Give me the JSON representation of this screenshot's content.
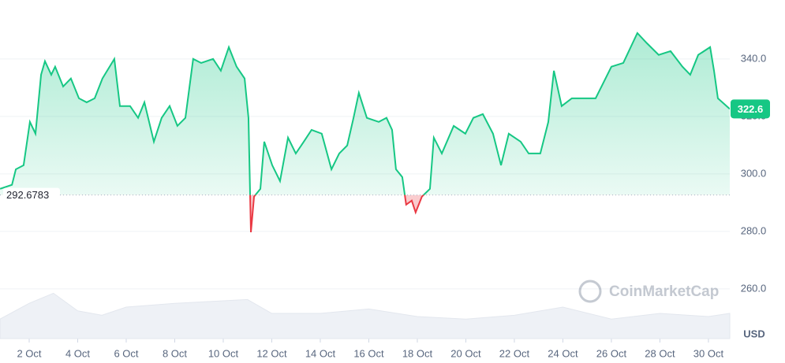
{
  "chart_data": {
    "type": "line",
    "watermark": "CoinMarketCap",
    "y_unit": "USD",
    "baseline": 292.6783,
    "color_up": "#16c784",
    "color_down": "#ea3943",
    "xlim": [
      0.797,
      30.88
    ],
    "xticks": [
      {
        "value": 2,
        "label": "2 Oct"
      },
      {
        "value": 4,
        "label": "4 Oct"
      },
      {
        "value": 6,
        "label": "6 Oct"
      },
      {
        "value": 8,
        "label": "8 Oct"
      },
      {
        "value": 10,
        "label": "10 Oct"
      },
      {
        "value": 12,
        "label": "12 Oct"
      },
      {
        "value": 14,
        "label": "14 Oct"
      },
      {
        "value": 16,
        "label": "16 Oct"
      },
      {
        "value": 18,
        "label": "18 Oct"
      },
      {
        "value": 20,
        "label": "20 Oct"
      },
      {
        "value": 22,
        "label": "22 Oct"
      },
      {
        "value": 24,
        "label": "24 Oct"
      },
      {
        "value": 26,
        "label": "26 Oct"
      },
      {
        "value": 28,
        "label": "28 Oct"
      },
      {
        "value": 30,
        "label": "30 Oct"
      }
    ],
    "ylim": [
      242.7,
      360.5
    ],
    "yticks": [
      {
        "value": 260,
        "label": "260.0"
      },
      {
        "value": 280,
        "label": "280.0"
      },
      {
        "value": 300,
        "label": "300.0"
      },
      {
        "value": 320,
        "label": "320.0"
      },
      {
        "value": 340,
        "label": "340.0"
      }
    ],
    "grid": true,
    "x": [
      0.8,
      1.29,
      1.45,
      1.77,
      2.03,
      2.26,
      2.49,
      2.65,
      2.91,
      3.07,
      3.4,
      3.72,
      4.05,
      4.37,
      4.7,
      5.02,
      5.51,
      5.74,
      6.16,
      6.49,
      6.75,
      7.14,
      7.46,
      7.79,
      8.11,
      8.44,
      8.76,
      9.09,
      9.58,
      9.9,
      10.23,
      10.55,
      10.88,
      11.04,
      11.14,
      11.27,
      11.53,
      11.69,
      12.02,
      12.34,
      12.67,
      12.99,
      13.32,
      13.64,
      14.06,
      14.46,
      14.78,
      15.11,
      15.37,
      15.59,
      15.92,
      16.41,
      16.73,
      16.96,
      17.12,
      17.38,
      17.54,
      17.77,
      17.93,
      18.19,
      18.52,
      18.68,
      19.01,
      19.5,
      19.98,
      20.31,
      20.7,
      21.12,
      21.45,
      21.77,
      22.26,
      22.59,
      23.07,
      23.4,
      23.63,
      23.95,
      24.37,
      24.86,
      25.35,
      26.0,
      26.49,
      27.07,
      27.46,
      27.95,
      28.44,
      28.93,
      29.25,
      29.58,
      30.07,
      30.23,
      30.39,
      30.88
    ],
    "values": [
      294.8,
      296.2,
      301.6,
      303.0,
      318.1,
      314.0,
      334.5,
      339.2,
      334.5,
      337.3,
      330.4,
      333.2,
      326.3,
      324.9,
      326.3,
      333.2,
      340.0,
      323.6,
      323.6,
      319.5,
      324.9,
      311.2,
      319.5,
      323.6,
      316.7,
      319.5,
      340.0,
      338.6,
      340.0,
      335.9,
      344.1,
      337.3,
      333.2,
      319.5,
      279.7,
      292.1,
      294.8,
      311.2,
      303.0,
      297.5,
      312.6,
      307.1,
      311.2,
      315.3,
      314.0,
      301.6,
      307.1,
      309.9,
      319.5,
      328.2,
      319.5,
      318.1,
      319.5,
      315.3,
      301.6,
      298.9,
      289.3,
      290.7,
      286.6,
      292.1,
      294.8,
      312.6,
      307.1,
      316.7,
      314.0,
      319.5,
      320.8,
      314.0,
      303.0,
      314.0,
      311.2,
      307.1,
      307.1,
      318.1,
      335.9,
      323.6,
      326.3,
      326.3,
      326.3,
      337.3,
      338.6,
      349.0,
      345.5,
      341.4,
      342.7,
      337.3,
      334.5,
      341.4,
      344.1,
      335.9,
      326.3,
      322.6
    ],
    "y2lim": [
      0,
      100
    ],
    "volume": {
      "x": [
        0.8,
        2,
        3,
        4,
        5,
        6,
        8,
        10,
        11,
        12,
        14,
        16,
        18,
        20,
        22,
        24,
        26,
        28,
        30,
        30.88
      ],
      "values": [
        31,
        56,
        72,
        44,
        37,
        50,
        56,
        60,
        62,
        40,
        40,
        47,
        35,
        31,
        37,
        50,
        31,
        40,
        35,
        40
      ]
    }
  }
}
